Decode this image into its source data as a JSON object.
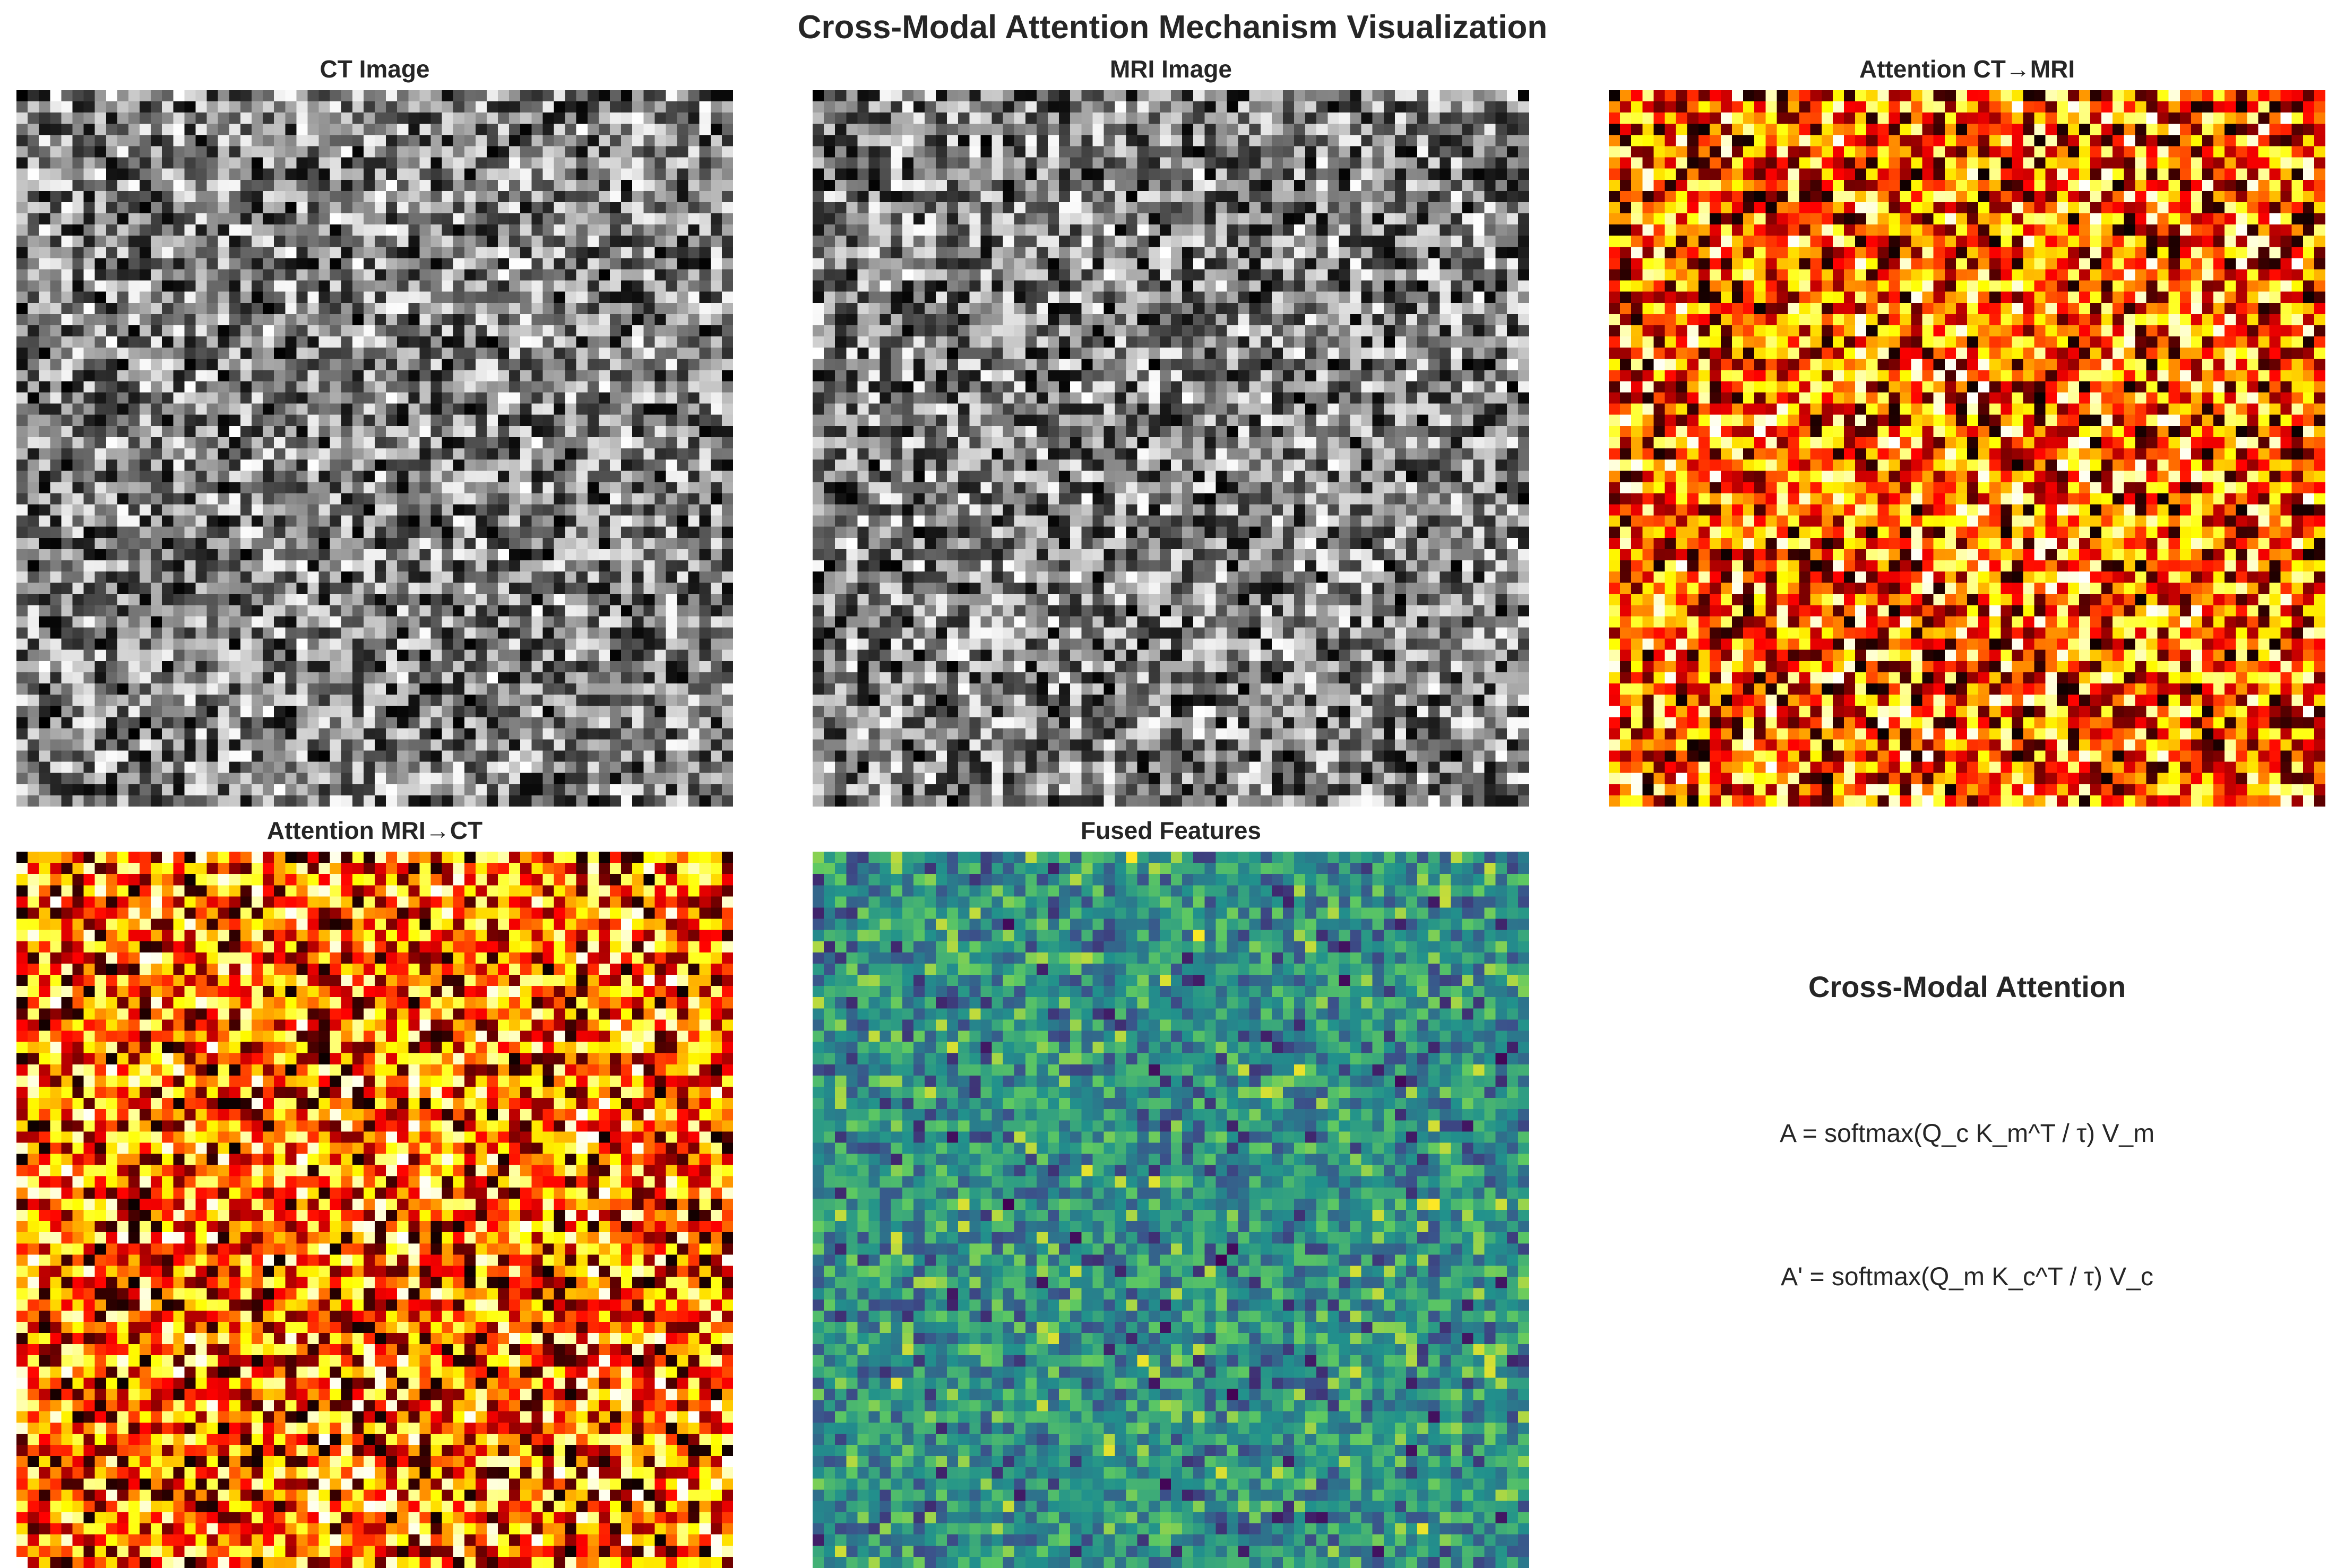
{
  "figure": {
    "title": "Cross-Modal Attention Mechanism Visualization"
  },
  "chart_data": [
    {
      "type": "heatmap",
      "title": "CT Image",
      "colormap": "gray",
      "grid_size": [
        64,
        64
      ],
      "value_range": [
        0,
        1
      ],
      "xlabel": "",
      "ylabel": "",
      "axes_visible": false,
      "seed": 11
    },
    {
      "type": "heatmap",
      "title": "MRI Image",
      "colormap": "gray",
      "grid_size": [
        64,
        64
      ],
      "value_range": [
        0,
        1
      ],
      "xlabel": "",
      "ylabel": "",
      "axes_visible": false,
      "seed": 23
    },
    {
      "type": "heatmap",
      "title": "Attention CT→MRI",
      "colormap": "hot",
      "grid_size": [
        64,
        64
      ],
      "value_range": [
        0,
        1
      ],
      "xlabel": "",
      "ylabel": "",
      "axes_visible": false,
      "seed": 37
    },
    {
      "type": "heatmap",
      "title": "Attention MRI→CT",
      "colormap": "hot",
      "grid_size": [
        64,
        64
      ],
      "value_range": [
        0,
        1
      ],
      "xlabel": "",
      "ylabel": "",
      "axes_visible": false,
      "seed": 41
    },
    {
      "type": "heatmap",
      "title": "Fused Features",
      "colormap": "viridis",
      "grid_size": [
        64,
        64
      ],
      "value_range": [
        0,
        1
      ],
      "xlabel": "",
      "ylabel": "",
      "axes_visible": false,
      "seed": 53
    }
  ],
  "text_panel": {
    "title": "Cross-Modal Attention",
    "equations": [
      "A = softmax(Q_c K_m^T / τ) V_m",
      "A' = softmax(Q_m K_c^T / τ) V_c"
    ]
  }
}
